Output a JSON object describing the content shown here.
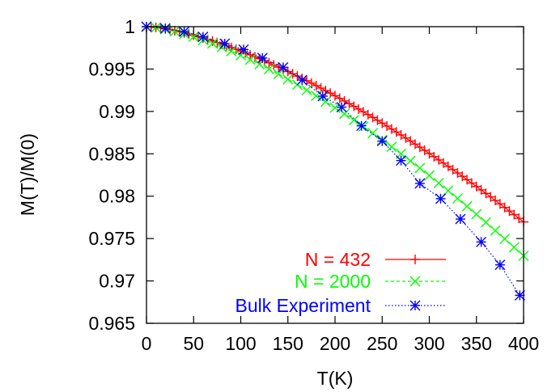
{
  "chart_data": {
    "type": "line",
    "title": "",
    "xlabel": "T(K)",
    "ylabel": "M(T)/M(0)",
    "xlim": [
      0,
      400
    ],
    "ylim": [
      0.965,
      1.0
    ],
    "x_ticks": [
      0,
      50,
      100,
      150,
      200,
      250,
      300,
      350,
      400
    ],
    "x_tick_labels": [
      "0",
      "50",
      "100",
      "150",
      "200",
      "250",
      "300",
      "350",
      "400"
    ],
    "y_ticks": [
      0.965,
      0.97,
      0.975,
      0.98,
      0.985,
      0.99,
      0.995,
      1.0
    ],
    "y_tick_labels": [
      "0.965",
      "0.97",
      "0.975",
      "0.98",
      "0.985",
      "0.99",
      "0.995",
      "1"
    ],
    "grid": false,
    "legend_position": "bottom-right",
    "series": [
      {
        "name": "N = 432",
        "color": "#ff0000",
        "marker": "plus",
        "line": "solid",
        "model": "one_minus_a_t_pow_1_5",
        "a": 2.88e-06,
        "x_start": 0,
        "x_end": 400,
        "x_step": 5
      },
      {
        "name": "N = 2000",
        "color": "#00ff00",
        "marker": "cross",
        "line": "dashed",
        "model": "one_minus_a_t_pow_1_5",
        "a": 3.38e-06,
        "x_start": 0,
        "x_end": 400,
        "x_step": 10
      },
      {
        "name": "Bulk Experiment",
        "color": "#0000ff",
        "marker": "star",
        "line": "dotted",
        "x": [
          0,
          20,
          40,
          60,
          83,
          103,
          123,
          145,
          165,
          187,
          207,
          228,
          250,
          270,
          290,
          312,
          333,
          355,
          375,
          396
        ],
        "y": [
          1.0,
          0.9998,
          0.9994,
          0.9988,
          0.998,
          0.9973,
          0.9963,
          0.9952,
          0.9937,
          0.9918,
          0.9905,
          0.9883,
          0.9865,
          0.9842,
          0.9815,
          0.9797,
          0.9773,
          0.9746,
          0.9719,
          0.9683
        ]
      }
    ]
  }
}
